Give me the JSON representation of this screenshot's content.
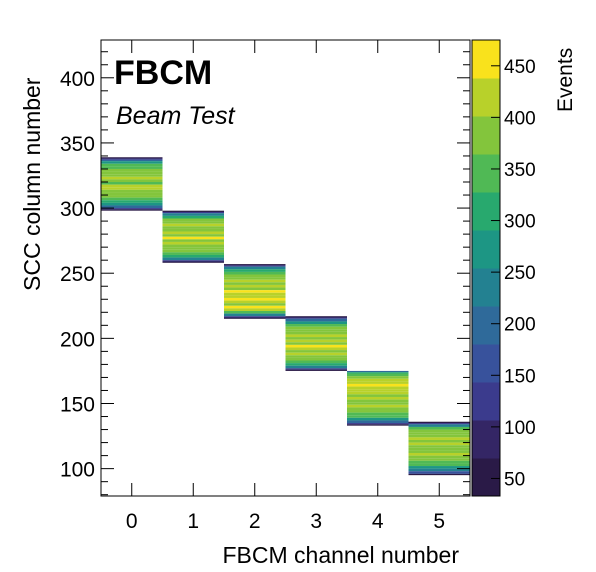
{
  "chart_data": {
    "type": "heatmap",
    "experiment_label": "FBCM",
    "subtitle": "Beam Test",
    "xlabel": "FBCM channel number",
    "ylabel": "SCC column number",
    "zlabel": "Events",
    "xlim": [
      -0.5,
      5.5
    ],
    "ylim": [
      79,
      429
    ],
    "zlim": [
      33,
      475
    ],
    "x_ticks": [
      "0",
      "1",
      "2",
      "3",
      "4",
      "5"
    ],
    "y_ticks": [
      "100",
      "150",
      "200",
      "250",
      "300",
      "350",
      "400"
    ],
    "z_ticks": [
      "50",
      "100",
      "150",
      "200",
      "250",
      "300",
      "350",
      "400",
      "450"
    ],
    "colormap": [
      "#2a1a47",
      "#342665",
      "#3b3b8d",
      "#38529c",
      "#2f6a9a",
      "#238191",
      "#1d9684",
      "#28a96e",
      "#50b955",
      "#83c53c",
      "#b8d12a",
      "#f9e21c"
    ],
    "series": [
      {
        "channel": 0,
        "rows": [
          339,
          338,
          337,
          336,
          334,
          332,
          330,
          328,
          326,
          324,
          322,
          320,
          318,
          316,
          314,
          312,
          310,
          308,
          306,
          304,
          302,
          300,
          299
        ],
        "events": [
          40,
          120,
          200,
          280,
          330,
          355,
          380,
          400,
          375,
          410,
          390,
          360,
          405,
          420,
          385,
          370,
          395,
          345,
          310,
          270,
          200,
          120,
          40
        ]
      },
      {
        "channel": 1,
        "rows": [
          298,
          297,
          296,
          294,
          292,
          290,
          288,
          286,
          284,
          282,
          280,
          278,
          276,
          274,
          272,
          270,
          268,
          266,
          264,
          262,
          260,
          259
        ],
        "events": [
          40,
          130,
          230,
          320,
          365,
          390,
          410,
          395,
          380,
          420,
          400,
          450,
          395,
          405,
          385,
          370,
          395,
          360,
          300,
          220,
          120,
          40
        ]
      },
      {
        "channel": 2,
        "rows": [
          257,
          256,
          255,
          253,
          251,
          249,
          247,
          245,
          243,
          241,
          239,
          237,
          235,
          233,
          231,
          229,
          227,
          225,
          223,
          221,
          219,
          217,
          216
        ],
        "events": [
          40,
          140,
          240,
          320,
          360,
          390,
          380,
          410,
          400,
          430,
          395,
          440,
          410,
          425,
          445,
          420,
          400,
          470,
          410,
          340,
          240,
          120,
          40
        ]
      },
      {
        "channel": 3,
        "rows": [
          217,
          216,
          215,
          213,
          211,
          209,
          207,
          205,
          203,
          201,
          199,
          197,
          195,
          193,
          191,
          189,
          187,
          185,
          183,
          181,
          179,
          177,
          176
        ],
        "events": [
          40,
          120,
          200,
          280,
          340,
          370,
          395,
          385,
          410,
          400,
          420,
          395,
          440,
          405,
          390,
          415,
          380,
          395,
          360,
          300,
          220,
          130,
          40
        ]
      },
      {
        "channel": 4,
        "rows": [
          175,
          174,
          173,
          171,
          169,
          167,
          165,
          163,
          161,
          159,
          157,
          155,
          153,
          151,
          149,
          147,
          145,
          143,
          141,
          139,
          137,
          135,
          134
        ],
        "events": [
          200,
          320,
          360,
          390,
          410,
          420,
          440,
          405,
          430,
          415,
          395,
          420,
          400,
          385,
          410,
          390,
          380,
          360,
          330,
          280,
          200,
          120,
          40
        ]
      },
      {
        "channel": 5,
        "rows": [
          136,
          135,
          134,
          132,
          130,
          128,
          126,
          124,
          122,
          120,
          118,
          116,
          114,
          112,
          110,
          108,
          106,
          104,
          102,
          100,
          98,
          96
        ],
        "events": [
          40,
          130,
          240,
          330,
          370,
          400,
          385,
          410,
          395,
          405,
          380,
          400,
          390,
          410,
          385,
          375,
          360,
          330,
          290,
          230,
          150,
          60
        ]
      }
    ]
  }
}
